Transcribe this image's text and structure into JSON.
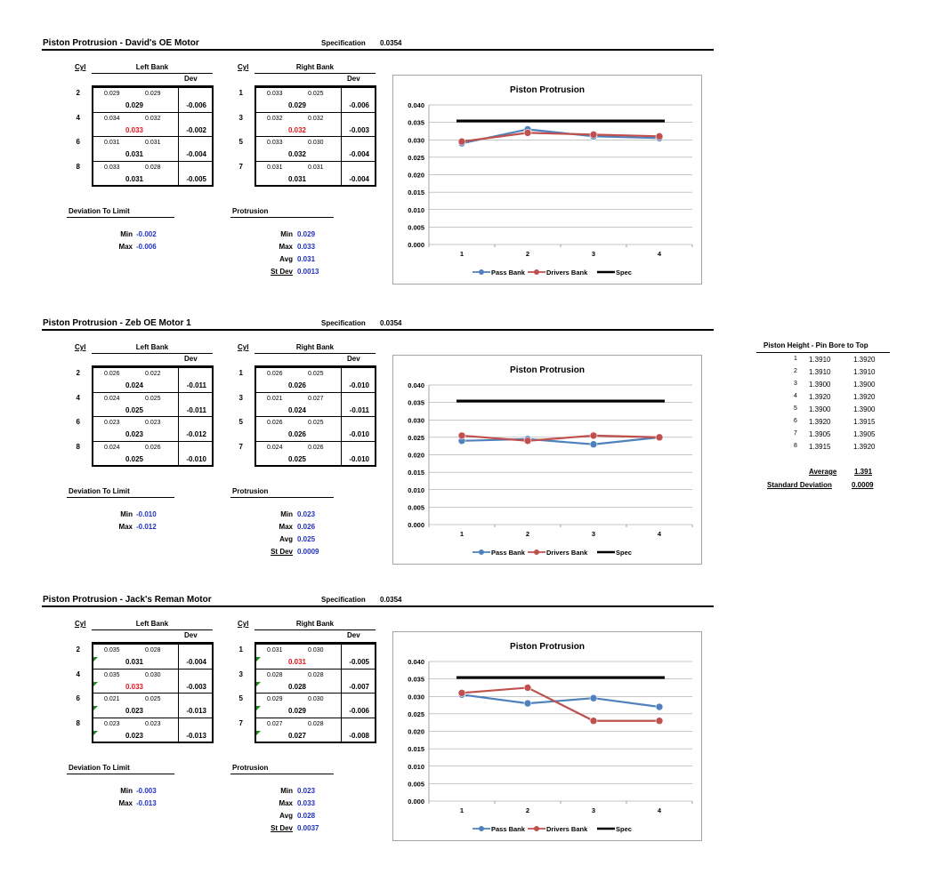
{
  "sections": [
    {
      "title": "Piston Protrusion - David's OE Motor",
      "spec_label": "Specification",
      "spec_value": "0.0354",
      "cyl_header": "Cyl",
      "left_bank_label": "Left Bank",
      "right_bank_label": "Right Bank",
      "dev_header": "Dev",
      "left_rows": [
        {
          "cyl": "2",
          "m1": "0.029",
          "m2": "0.029",
          "val": "0.029",
          "dev": "-0.006",
          "red": false
        },
        {
          "cyl": "4",
          "m1": "0.034",
          "m2": "0.032",
          "val": "0.033",
          "dev": "-0.002",
          "red": true
        },
        {
          "cyl": "6",
          "m1": "0.031",
          "m2": "0.031",
          "val": "0.031",
          "dev": "-0.004",
          "red": false
        },
        {
          "cyl": "8",
          "m1": "0.033",
          "m2": "0.028",
          "val": "0.031",
          "dev": "-0.005",
          "red": false
        }
      ],
      "right_rows": [
        {
          "cyl": "1",
          "m1": "0.033",
          "m2": "0.025",
          "val": "0.029",
          "dev": "-0.006",
          "red": false
        },
        {
          "cyl": "3",
          "m1": "0.032",
          "m2": "0.032",
          "val": "0.032",
          "dev": "-0.003",
          "red": true
        },
        {
          "cyl": "5",
          "m1": "0.033",
          "m2": "0.030",
          "val": "0.032",
          "dev": "-0.004",
          "red": false
        },
        {
          "cyl": "7",
          "m1": "0.031",
          "m2": "0.031",
          "val": "0.031",
          "dev": "-0.004",
          "red": false
        }
      ],
      "dev_limit_label": "Deviation To Limit",
      "dev_min_label": "Min",
      "dev_min": "-0.002",
      "dev_max_label": "Max",
      "dev_max": "-0.006",
      "prot_label": "Protrusion",
      "prot_min_label": "Min",
      "prot_min": "0.029",
      "prot_max_label": "Max",
      "prot_max": "0.033",
      "prot_avg_label": "Avg",
      "prot_avg": "0.031",
      "prot_sd_label": "St Dev",
      "prot_sd": "0.0013",
      "green_markers": false
    },
    {
      "title": "Piston Protrusion - Zeb OE Motor 1",
      "spec_label": "Specification",
      "spec_value": "0.0354",
      "cyl_header": "Cyl",
      "left_bank_label": "Left Bank",
      "right_bank_label": "Right Bank",
      "dev_header": "Dev",
      "left_rows": [
        {
          "cyl": "2",
          "m1": "0.026",
          "m2": "0.022",
          "val": "0.024",
          "dev": "-0.011",
          "red": false
        },
        {
          "cyl": "4",
          "m1": "0.024",
          "m2": "0.025",
          "val": "0.025",
          "dev": "-0.011",
          "red": false
        },
        {
          "cyl": "6",
          "m1": "0.023",
          "m2": "0.023",
          "val": "0.023",
          "dev": "-0.012",
          "red": false
        },
        {
          "cyl": "8",
          "m1": "0.024",
          "m2": "0.026",
          "val": "0.025",
          "dev": "-0.010",
          "red": false
        }
      ],
      "right_rows": [
        {
          "cyl": "1",
          "m1": "0.026",
          "m2": "0.025",
          "val": "0.026",
          "dev": "-0.010",
          "red": false
        },
        {
          "cyl": "3",
          "m1": "0.021",
          "m2": "0.027",
          "val": "0.024",
          "dev": "-0.011",
          "red": false
        },
        {
          "cyl": "5",
          "m1": "0.026",
          "m2": "0.025",
          "val": "0.026",
          "dev": "-0.010",
          "red": false
        },
        {
          "cyl": "7",
          "m1": "0.024",
          "m2": "0.026",
          "val": "0.025",
          "dev": "-0.010",
          "red": false
        }
      ],
      "dev_limit_label": "Deviation To Limit",
      "dev_min_label": "Min",
      "dev_min": "-0.010",
      "dev_max_label": "Max",
      "dev_max": "-0.012",
      "prot_label": "Protrusion",
      "prot_min_label": "Min",
      "prot_min": "0.023",
      "prot_max_label": "Max",
      "prot_max": "0.026",
      "prot_avg_label": "Avg",
      "prot_avg": "0.025",
      "prot_sd_label": "St Dev",
      "prot_sd": "0.0009",
      "green_markers": false
    },
    {
      "title": "Piston Protrusion - Jack's Reman Motor",
      "spec_label": "Specification",
      "spec_value": "0.0354",
      "cyl_header": "Cyl",
      "left_bank_label": "Left Bank",
      "right_bank_label": "Right Bank",
      "dev_header": "Dev",
      "left_rows": [
        {
          "cyl": "2",
          "m1": "0.035",
          "m2": "0.028",
          "val": "0.031",
          "dev": "-0.004",
          "red": false
        },
        {
          "cyl": "4",
          "m1": "0.035",
          "m2": "0.030",
          "val": "0.033",
          "dev": "-0.003",
          "red": true
        },
        {
          "cyl": "6",
          "m1": "0.021",
          "m2": "0.025",
          "val": "0.023",
          "dev": "-0.013",
          "red": false
        },
        {
          "cyl": "8",
          "m1": "0.023",
          "m2": "0.023",
          "val": "0.023",
          "dev": "-0.013",
          "red": false
        }
      ],
      "right_rows": [
        {
          "cyl": "1",
          "m1": "0.031",
          "m2": "0.030",
          "val": "0.031",
          "dev": "-0.005",
          "red": true
        },
        {
          "cyl": "3",
          "m1": "0.028",
          "m2": "0.028",
          "val": "0.028",
          "dev": "-0.007",
          "red": false
        },
        {
          "cyl": "5",
          "m1": "0.029",
          "m2": "0.030",
          "val": "0.029",
          "dev": "-0.006",
          "red": false
        },
        {
          "cyl": "7",
          "m1": "0.027",
          "m2": "0.028",
          "val": "0.027",
          "dev": "-0.008",
          "red": false
        }
      ],
      "dev_limit_label": "Deviation To Limit",
      "dev_min_label": "Min",
      "dev_min": "-0.003",
      "dev_max_label": "Max",
      "dev_max": "-0.013",
      "prot_label": "Protrusion",
      "prot_min_label": "Min",
      "prot_min": "0.023",
      "prot_max_label": "Max",
      "prot_max": "0.033",
      "prot_avg_label": "Avg",
      "prot_avg": "0.028",
      "prot_sd_label": "St Dev",
      "prot_sd": "0.0037",
      "green_markers": true
    }
  ],
  "chart_data": [
    {
      "type": "line",
      "title": "Piston Protrusion",
      "categories": [
        "1",
        "2",
        "3",
        "4"
      ],
      "ylim": [
        0,
        0.04
      ],
      "yticks": [
        "0.000",
        "0.005",
        "0.010",
        "0.015",
        "0.020",
        "0.025",
        "0.030",
        "0.035",
        "0.040"
      ],
      "grid": true,
      "legend": "bottom",
      "series": [
        {
          "name": "Pass Bank",
          "color": "#4f81bd",
          "values": [
            0.029,
            0.033,
            0.031,
            0.0305
          ]
        },
        {
          "name": "Drivers Bank",
          "color": "#c0504d",
          "values": [
            0.0295,
            0.032,
            0.0315,
            0.031
          ]
        },
        {
          "name": "Spec",
          "color": "#000000",
          "values": [
            0.0354,
            0.0354,
            0.0354,
            0.0354
          ]
        }
      ]
    },
    {
      "type": "line",
      "title": "Piston Protrusion",
      "categories": [
        "1",
        "2",
        "3",
        "4"
      ],
      "ylim": [
        0,
        0.04
      ],
      "yticks": [
        "0.000",
        "0.005",
        "0.010",
        "0.015",
        "0.020",
        "0.025",
        "0.030",
        "0.035",
        "0.040"
      ],
      "grid": true,
      "legend": "bottom",
      "series": [
        {
          "name": "Pass Bank",
          "color": "#4f81bd",
          "values": [
            0.024,
            0.0245,
            0.023,
            0.025
          ]
        },
        {
          "name": "Drivers Bank",
          "color": "#c0504d",
          "values": [
            0.0255,
            0.024,
            0.0255,
            0.025
          ]
        },
        {
          "name": "Spec",
          "color": "#000000",
          "values": [
            0.0354,
            0.0354,
            0.0354,
            0.0354
          ]
        }
      ]
    },
    {
      "type": "line",
      "title": "Piston Protrusion",
      "categories": [
        "1",
        "2",
        "3",
        "4"
      ],
      "ylim": [
        0,
        0.04
      ],
      "yticks": [
        "0.000",
        "0.005",
        "0.010",
        "0.015",
        "0.020",
        "0.025",
        "0.030",
        "0.035",
        "0.040"
      ],
      "grid": true,
      "legend": "bottom",
      "series": [
        {
          "name": "Pass Bank",
          "color": "#4f81bd",
          "values": [
            0.0305,
            0.028,
            0.0295,
            0.027
          ]
        },
        {
          "name": "Drivers Bank",
          "color": "#c0504d",
          "values": [
            0.031,
            0.0325,
            0.023,
            0.023
          ]
        },
        {
          "name": "Spec",
          "color": "#000000",
          "values": [
            0.0354,
            0.0354,
            0.0354,
            0.0354
          ]
        }
      ]
    }
  ],
  "piston_height": {
    "title": "Piston Height - Pin Bore to Top",
    "rows": [
      {
        "n": "1",
        "a": "1.3910",
        "b": "1.3920"
      },
      {
        "n": "2",
        "a": "1.3910",
        "b": "1.3910"
      },
      {
        "n": "3",
        "a": "1.3900",
        "b": "1.3900"
      },
      {
        "n": "4",
        "a": "1.3920",
        "b": "1.3920"
      },
      {
        "n": "5",
        "a": "1.3900",
        "b": "1.3900"
      },
      {
        "n": "6",
        "a": "1.3920",
        "b": "1.3915"
      },
      {
        "n": "7",
        "a": "1.3905",
        "b": "1.3905"
      },
      {
        "n": "8",
        "a": "1.3915",
        "b": "1.3920"
      }
    ],
    "average_label": "Average",
    "average": "1.391",
    "sd_label": "Standard Deviation",
    "sd": "0.0009"
  }
}
